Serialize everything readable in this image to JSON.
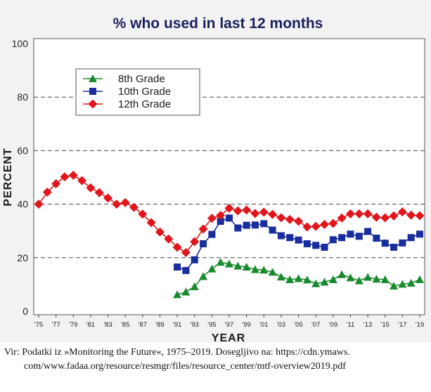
{
  "chart_data": {
    "type": "line",
    "title": "% who used in last 12 months",
    "xlabel": "YEAR",
    "ylabel": "PERCENT",
    "ylim": [
      0,
      100
    ],
    "yticks": [
      0,
      20,
      40,
      60,
      80,
      100
    ],
    "x_tick_labels": [
      "'75",
      "'77",
      "'79",
      "'81",
      "'83",
      "'85",
      "'87",
      "'89",
      "'91",
      "'93",
      "'95",
      "'97",
      "'99",
      "'01",
      "'03",
      "'05",
      "'07",
      "'09",
      "'11",
      "'13",
      "'15",
      "'17",
      "'19"
    ],
    "x_tick_years": [
      1975,
      1977,
      1979,
      1981,
      1983,
      1985,
      1987,
      1989,
      1991,
      1993,
      1995,
      1997,
      1999,
      2001,
      2003,
      2005,
      2007,
      2009,
      2011,
      2013,
      2015,
      2017,
      2019
    ],
    "xlim": [
      1975,
      2019
    ],
    "grid": "horizontal-dashed",
    "legend_position": "top-left",
    "series": [
      {
        "name": "8th Grade",
        "color": "#1a8a2e",
        "marker": "triangle",
        "x": [
          1991,
          1992,
          1993,
          1994,
          1995,
          1996,
          1997,
          1998,
          1999,
          2000,
          2001,
          2002,
          2003,
          2004,
          2005,
          2006,
          2007,
          2008,
          2009,
          2010,
          2011,
          2012,
          2013,
          2014,
          2015,
          2016,
          2017,
          2018,
          2019
        ],
        "values": [
          6.2,
          7.2,
          9.2,
          13.0,
          15.8,
          18.3,
          17.7,
          16.9,
          16.5,
          15.6,
          15.4,
          14.6,
          12.8,
          11.8,
          12.2,
          11.7,
          10.3,
          10.9,
          11.8,
          13.7,
          12.5,
          11.4,
          12.7,
          12.0,
          11.8,
          9.4,
          10.1,
          10.5,
          11.8
        ]
      },
      {
        "name": "10th Grade",
        "color": "#1a2d9c",
        "marker": "square",
        "x": [
          1991,
          1992,
          1993,
          1994,
          1995,
          1996,
          1997,
          1998,
          1999,
          2000,
          2001,
          2002,
          2003,
          2004,
          2005,
          2006,
          2007,
          2008,
          2009,
          2010,
          2011,
          2012,
          2013,
          2014,
          2015,
          2016,
          2017,
          2018,
          2019
        ],
        "values": [
          16.5,
          15.2,
          19.2,
          25.2,
          28.7,
          33.6,
          34.8,
          31.1,
          32.1,
          32.2,
          32.7,
          30.3,
          28.2,
          27.5,
          26.6,
          25.2,
          24.6,
          23.9,
          26.7,
          27.5,
          28.8,
          28.0,
          29.8,
          27.3,
          25.4,
          23.9,
          25.5,
          27.5,
          28.8
        ]
      },
      {
        "name": "12th Grade",
        "color": "#e0161c",
        "marker": "diamond",
        "x": [
          1975,
          1976,
          1977,
          1978,
          1979,
          1980,
          1981,
          1982,
          1983,
          1984,
          1985,
          1986,
          1987,
          1988,
          1989,
          1990,
          1991,
          1992,
          1993,
          1994,
          1995,
          1996,
          1997,
          1998,
          1999,
          2000,
          2001,
          2002,
          2003,
          2004,
          2005,
          2006,
          2007,
          2008,
          2009,
          2010,
          2011,
          2012,
          2013,
          2014,
          2015,
          2016,
          2017,
          2018,
          2019
        ],
        "values": [
          40.0,
          44.5,
          47.6,
          50.2,
          50.8,
          48.8,
          46.1,
          44.3,
          42.3,
          40.0,
          40.6,
          38.8,
          36.3,
          33.1,
          29.6,
          27.0,
          23.9,
          21.9,
          26.0,
          30.7,
          34.7,
          35.8,
          38.5,
          37.5,
          37.8,
          36.5,
          37.0,
          36.2,
          34.9,
          34.3,
          33.6,
          31.5,
          31.7,
          32.4,
          32.8,
          34.8,
          36.4,
          36.4,
          36.4,
          35.1,
          34.9,
          35.6,
          37.1,
          35.9,
          35.7
        ]
      }
    ]
  },
  "caption": {
    "line1": "Vir: Podatki iz »Monitoring the Future«, 1975–2019. Dosegljivo na: https://cdn.ymaws.",
    "line2": "com/www.fadaa.org/resource/resmgr/files/resource_center/mtf-overview2019.pdf"
  }
}
